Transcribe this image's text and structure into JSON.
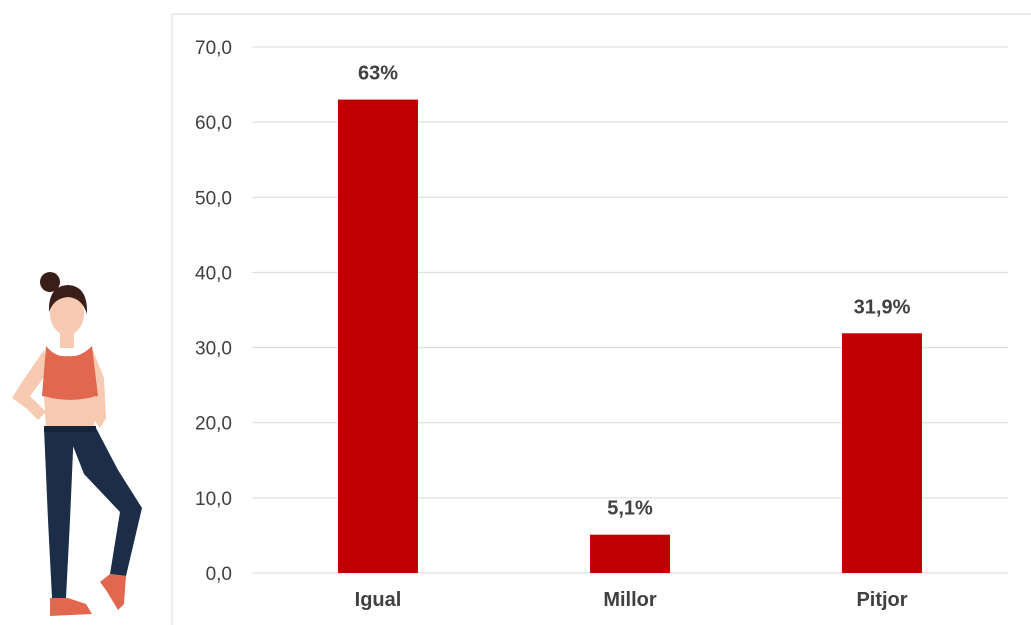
{
  "chart_data": {
    "type": "bar",
    "categories": [
      "Igual",
      "Millor",
      "Pitjor"
    ],
    "values": [
      63,
      5.1,
      31.9
    ],
    "data_labels": [
      "63%",
      "5,1%",
      "31,9%"
    ],
    "ylim": [
      0,
      70
    ],
    "yticks": [
      0,
      10,
      20,
      30,
      40,
      50,
      60,
      70
    ],
    "ytick_labels": [
      "0,0",
      "10,0",
      "20,0",
      "30,0",
      "40,0",
      "50,0",
      "60,0",
      "70,0"
    ],
    "grid": true,
    "legend": "none",
    "bar_color": "#c00000"
  },
  "illustration": {
    "icon": "woman-fitness-figure-icon",
    "colors": {
      "hair": "#3a1e1a",
      "skin": "#f6c9b1",
      "top": "#e2674f",
      "leggings": "#1c2d48",
      "shoes": "#e2674f"
    }
  }
}
